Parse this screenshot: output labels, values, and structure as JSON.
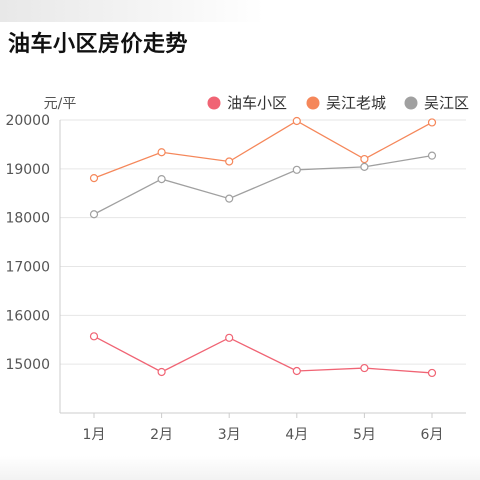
{
  "page": {
    "title": "油车小区房价走势"
  },
  "chart_data": {
    "type": "line",
    "title": "油车小区房价走势",
    "ylabel": "元/平",
    "xlabel": "",
    "categories": [
      "1月",
      "2月",
      "3月",
      "4月",
      "5月",
      "6月"
    ],
    "ylim": [
      14000,
      20000
    ],
    "yticks": [
      15000,
      16000,
      17000,
      18000,
      19000,
      20000
    ],
    "grid": true,
    "legend_position": "top-right",
    "series": [
      {
        "name": "油车小区",
        "color": "#f06474",
        "values": [
          15570,
          14840,
          15540,
          14860,
          14920,
          14820
        ]
      },
      {
        "name": "吴江老城",
        "color": "#f5875a",
        "values": [
          18810,
          19340,
          19150,
          19980,
          19200,
          19950
        ]
      },
      {
        "name": "吴江区",
        "color": "#a0a0a0",
        "values": [
          18070,
          18790,
          18390,
          18980,
          19040,
          19270
        ]
      }
    ]
  }
}
